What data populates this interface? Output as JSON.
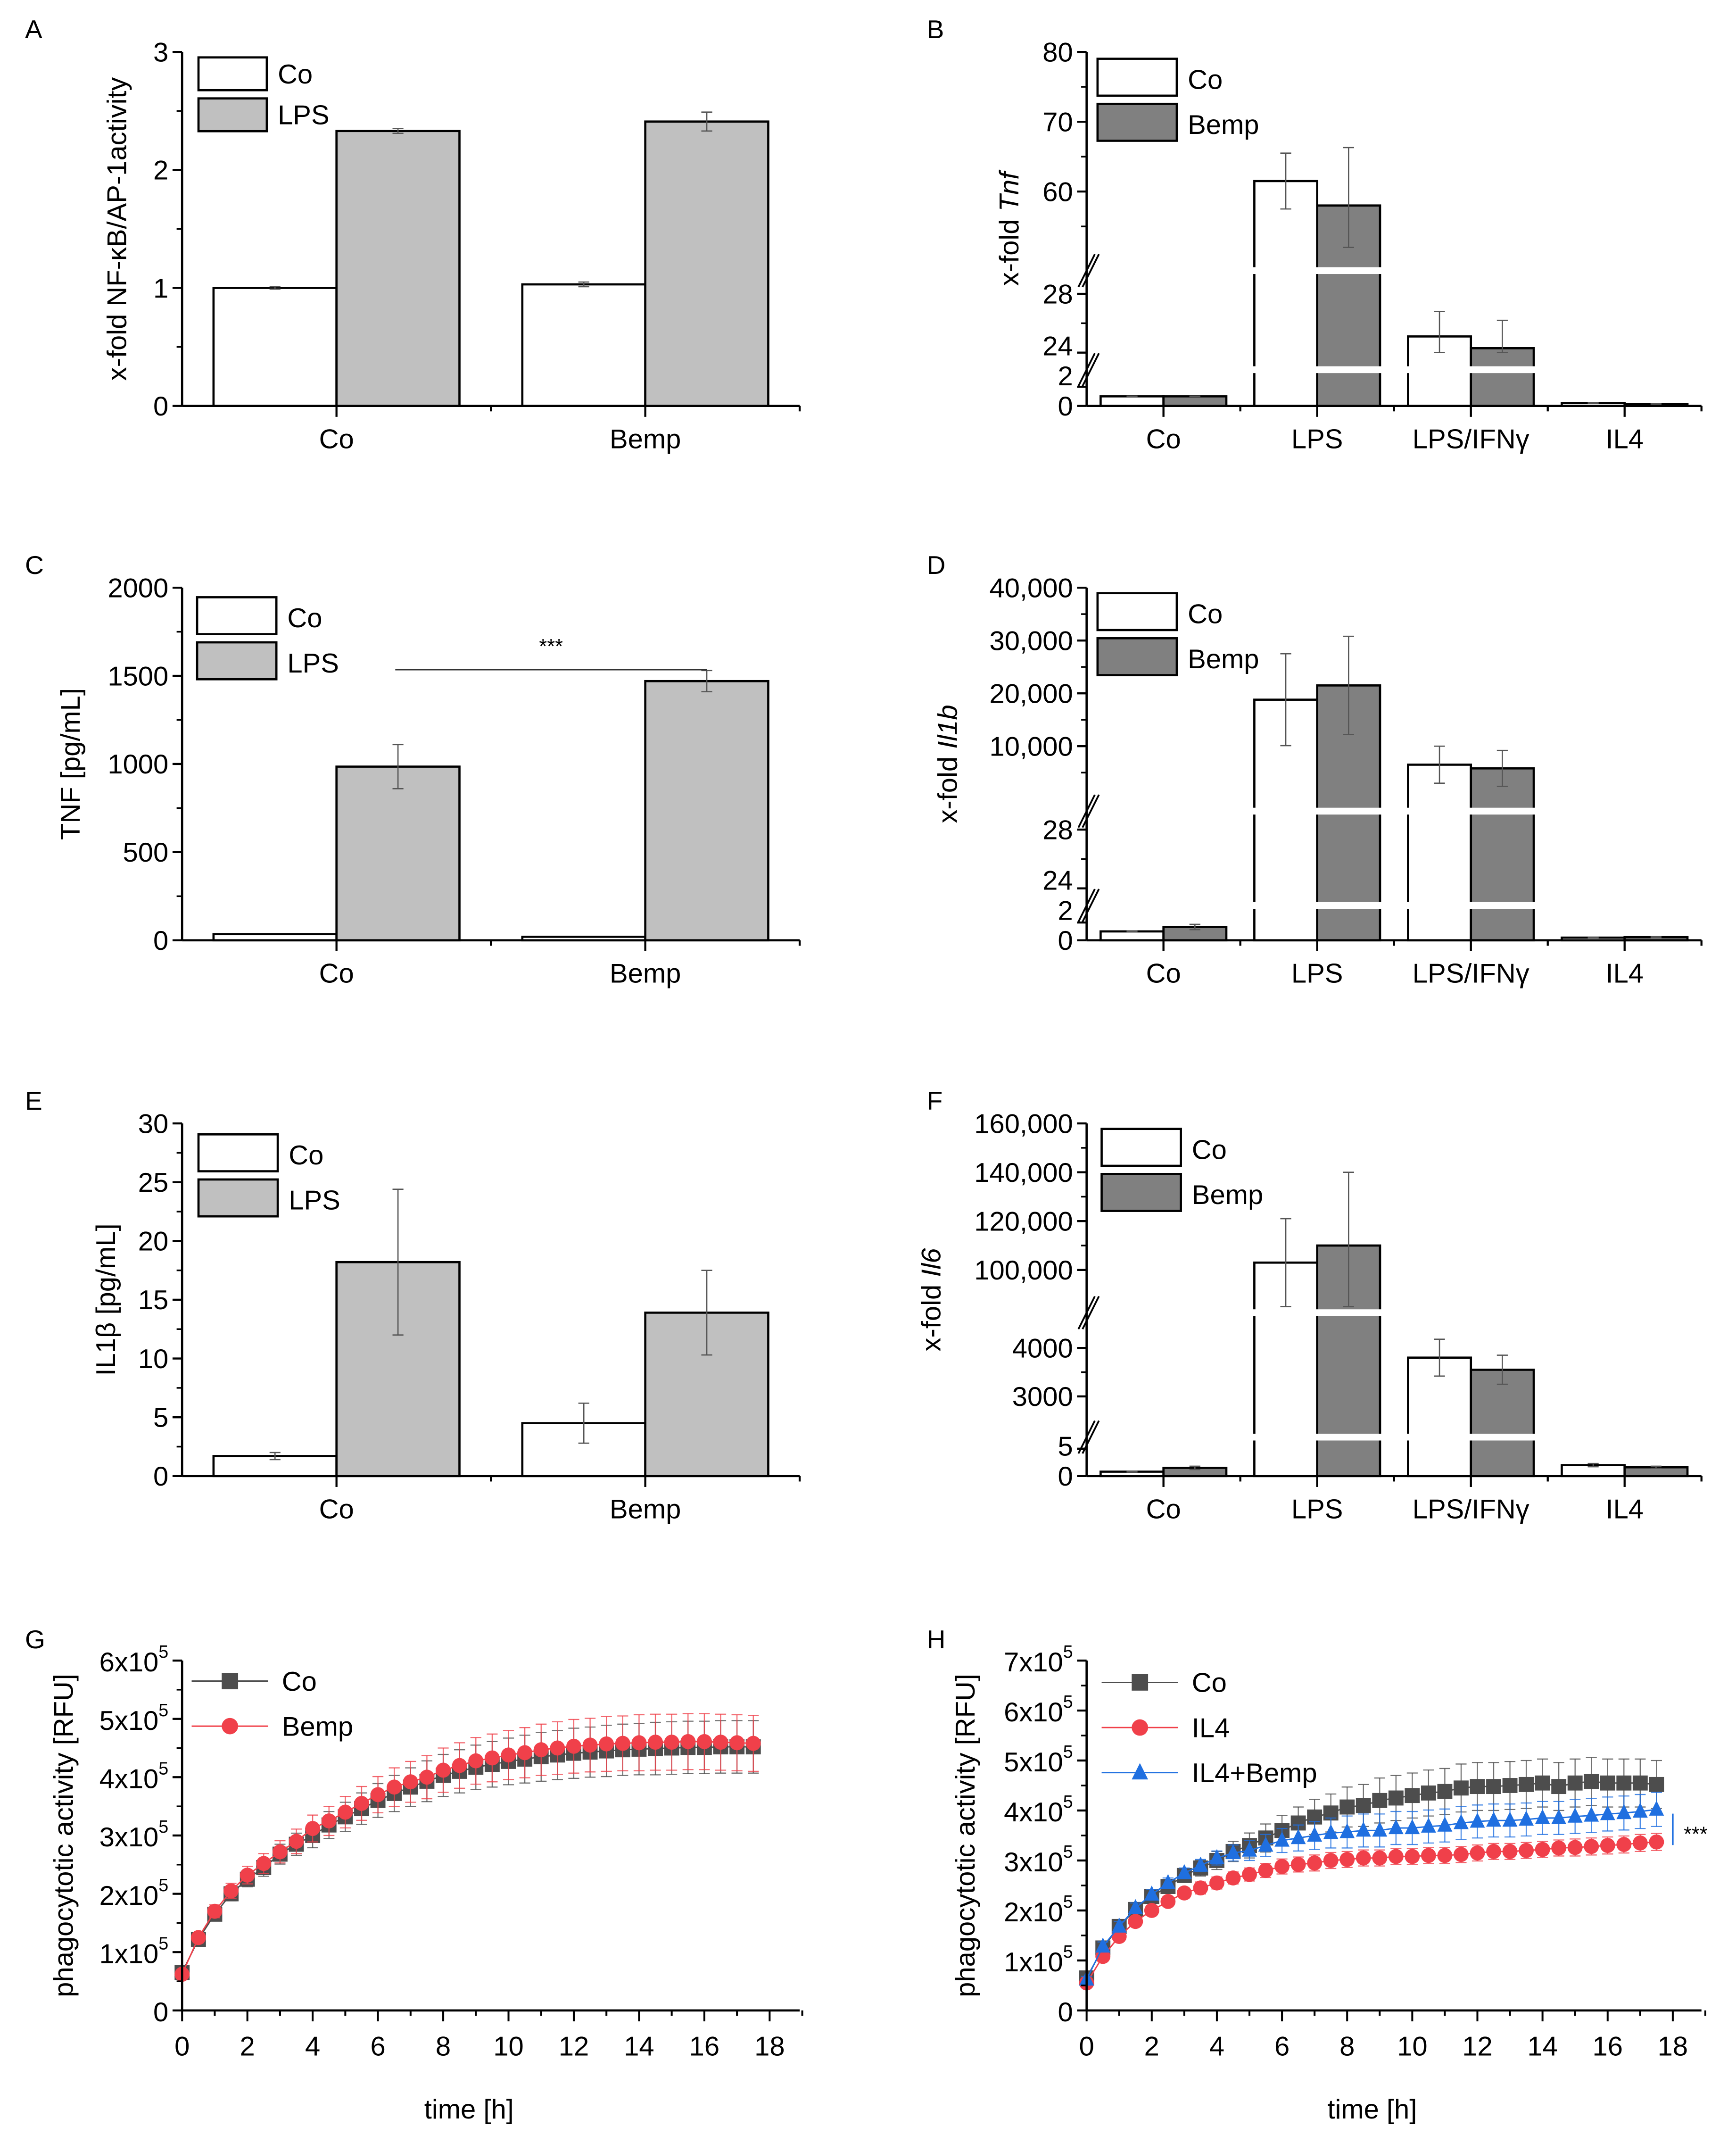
{
  "chart_data": [
    {
      "panel": "A",
      "type": "bar",
      "categories": [
        "Co",
        "Bemp"
      ],
      "series": [
        {
          "name": "Co",
          "values": [
            1.0,
            1.03
          ],
          "errors": [
            0.01,
            0.02
          ],
          "color": "#ffffff"
        },
        {
          "name": "LPS",
          "values": [
            2.33,
            2.41
          ],
          "errors": [
            0.02,
            0.08
          ],
          "color": "#c0c0c0"
        }
      ],
      "ylabel": "x-fold NF-κB/AP-1activity",
      "ylabel_italic": "",
      "ylim": [
        0,
        3
      ],
      "segments": [
        [
          0,
          3
        ]
      ],
      "yticks": [
        0,
        1,
        2,
        3
      ],
      "ytick_labels": [
        "0",
        "1",
        "2",
        "3"
      ],
      "yminor": [
        0.5,
        1.5,
        2.5
      ]
    },
    {
      "panel": "B",
      "type": "bar",
      "categories": [
        "Co",
        "LPS",
        "LPS/IFNγ",
        "IL4"
      ],
      "series": [
        {
          "name": "Co",
          "values": [
            1.0,
            61.5,
            25.1,
            0.3
          ],
          "errors": [
            0.02,
            4.0,
            1.7,
            0.02
          ],
          "color": "#ffffff"
        },
        {
          "name": "Bemp",
          "values": [
            1.0,
            58.0,
            24.3,
            0.2
          ],
          "errors": [
            0.02,
            8.3,
            1.9,
            0.02
          ],
          "color": "#808080"
        }
      ],
      "ylabel": "x-fold ",
      "ylabel_italic": "Tnf",
      "ylim": [
        0,
        80
      ],
      "segments": [
        [
          0,
          2
        ],
        [
          24,
          28
        ],
        [
          52,
          80
        ]
      ],
      "yticks": [
        0,
        2,
        24,
        28,
        60,
        70,
        80
      ],
      "ytick_labels": [
        "0",
        "2",
        "24",
        "28",
        "60",
        "70",
        "80"
      ],
      "yminor": [
        26,
        55,
        65,
        75
      ]
    },
    {
      "panel": "C",
      "type": "bar",
      "categories": [
        "Co",
        "Bemp"
      ],
      "series": [
        {
          "name": "Co",
          "values": [
            35,
            20
          ],
          "errors": [
            0,
            0
          ],
          "color": "#ffffff"
        },
        {
          "name": "LPS",
          "values": [
            985,
            1470
          ],
          "errors": [
            125,
            60
          ],
          "color": "#c0c0c0"
        }
      ],
      "ylabel": "TNF [pg/mL]",
      "ylabel_italic": "",
      "ylim": [
        0,
        2000
      ],
      "segments": [
        [
          0,
          2000
        ]
      ],
      "yticks": [
        0,
        500,
        1000,
        1500,
        2000
      ],
      "ytick_labels": [
        "0",
        "500",
        "1000",
        "1500",
        "2000"
      ],
      "yminor": [
        250,
        750,
        1250,
        1750
      ],
      "annotation": {
        "text": "***",
        "from": "Co",
        "to": "Bemp"
      }
    },
    {
      "panel": "D",
      "type": "bar",
      "categories": [
        "Co",
        "LPS",
        "LPS/IFNγ",
        "IL4"
      ],
      "series": [
        {
          "name": "Co",
          "values": [
            1.0,
            18800,
            6500,
            0.3
          ],
          "errors": [
            0.05,
            8700,
            3500,
            0.03
          ],
          "color": "#ffffff"
        },
        {
          "name": "Bemp",
          "values": [
            1.5,
            21500,
            5800,
            0.35
          ],
          "errors": [
            0.3,
            9300,
            3400,
            0.05
          ],
          "color": "#808080"
        }
      ],
      "ylabel": "x-fold ",
      "ylabel_italic": "Il1b",
      "ylim": [
        0,
        40000
      ],
      "segments": [
        [
          0,
          2
        ],
        [
          24,
          28
        ],
        [
          1200,
          40000
        ]
      ],
      "yticks": [
        0,
        2,
        24,
        28,
        10000,
        20000,
        30000,
        40000
      ],
      "ytick_labels": [
        "0",
        "2",
        "24",
        "28",
        "10,000",
        "20,000",
        "30,000",
        "40,000"
      ],
      "yminor": [
        26,
        5000,
        15000,
        25000,
        35000
      ]
    },
    {
      "panel": "E",
      "type": "bar",
      "categories": [
        "Co",
        "Bemp"
      ],
      "series": [
        {
          "name": "Co",
          "values": [
            1.7,
            4.5
          ],
          "errors": [
            0.3,
            1.7
          ],
          "color": "#ffffff"
        },
        {
          "name": "LPS",
          "values": [
            18.2,
            13.9
          ],
          "errors": [
            6.2,
            3.6
          ],
          "color": "#c0c0c0"
        }
      ],
      "ylabel": "IL1β [pg/mL]",
      "ylabel_italic": "",
      "ylim": [
        0,
        30
      ],
      "segments": [
        [
          0,
          30
        ]
      ],
      "yticks": [
        0,
        5,
        10,
        15,
        20,
        25,
        30
      ],
      "ytick_labels": [
        "0",
        "5",
        "10",
        "15",
        "20",
        "25",
        "30"
      ],
      "yminor": [
        2.5,
        7.5,
        12.5,
        17.5,
        22.5,
        27.5
      ]
    },
    {
      "panel": "F",
      "type": "bar",
      "categories": [
        "Co",
        "LPS",
        "LPS/IFNγ",
        "IL4"
      ],
      "series": [
        {
          "name": "Co",
          "values": [
            0.8,
            103000,
            3800,
            2.0
          ],
          "errors": [
            0.05,
            18000,
            380,
            0.3
          ],
          "color": "#ffffff"
        },
        {
          "name": "Bemp",
          "values": [
            1.5,
            110000,
            3550,
            1.6
          ],
          "errors": [
            0.3,
            30000,
            300,
            0.2
          ],
          "color": "#808080"
        }
      ],
      "ylabel": "x-fold ",
      "ylabel_italic": "Il6",
      "ylim": [
        0,
        160000
      ],
      "segments": [
        [
          0,
          5
        ],
        [
          2400,
          4600
        ],
        [
          85000,
          160000
        ]
      ],
      "yticks": [
        0,
        5,
        3000,
        4000,
        100000,
        120000,
        140000,
        160000
      ],
      "ytick_labels": [
        "0",
        "5",
        "3000",
        "4000",
        "100,000",
        "120,000",
        "140,000",
        "160,000"
      ],
      "yminor": [
        3500,
        110000,
        130000,
        150000
      ]
    },
    {
      "panel": "G",
      "type": "line",
      "x": [
        0,
        0.5,
        1,
        1.5,
        2,
        2.5,
        3,
        3.5,
        4,
        4.5,
        5,
        5.5,
        6,
        6.5,
        7,
        7.5,
        8,
        8.5,
        9,
        9.5,
        10,
        10.5,
        11,
        11.5,
        12,
        12.5,
        13,
        13.5,
        14,
        14.5,
        15,
        15.5,
        16,
        16.5,
        17,
        17.5
      ],
      "series": [
        {
          "name": "Co",
          "marker": "square",
          "color": "#4d4d4d",
          "values": [
            65000,
            122000,
            165000,
            200000,
            225000,
            245000,
            268000,
            285000,
            300000,
            318000,
            332000,
            346000,
            360000,
            372000,
            383000,
            393000,
            403000,
            410000,
            417000,
            422000,
            427000,
            431000,
            435000,
            438000,
            441000,
            443000,
            445000,
            447000,
            448000,
            449000,
            450000,
            451000,
            451000,
            452000,
            452000,
            452000
          ],
          "errors": [
            5000,
            8000,
            10000,
            12000,
            13000,
            15000,
            17000,
            19000,
            21000,
            23000,
            25000,
            27000,
            29000,
            31000,
            33000,
            35000,
            36000,
            37000,
            38000,
            39000,
            40000,
            41000,
            42000,
            42000,
            43000,
            43000,
            44000,
            44000,
            44000,
            45000,
            45000,
            45000,
            45000,
            45000,
            45000,
            45000
          ]
        },
        {
          "name": "Bemp",
          "marker": "circle",
          "color": "#f0404a",
          "values": [
            62000,
            125000,
            170000,
            205000,
            232000,
            252000,
            272000,
            290000,
            312000,
            325000,
            340000,
            355000,
            370000,
            383000,
            392000,
            400000,
            412000,
            420000,
            428000,
            433000,
            438000,
            442000,
            447000,
            450000,
            453000,
            455000,
            457000,
            458000,
            459000,
            460000,
            460000,
            461000,
            461000,
            460000,
            459000,
            458000
          ],
          "errors": [
            6000,
            9000,
            11000,
            13000,
            15000,
            17000,
            19000,
            21000,
            23000,
            25000,
            27000,
            29000,
            31000,
            33000,
            35000,
            37000,
            38000,
            39000,
            40000,
            41000,
            42000,
            43000,
            44000,
            45000,
            46000,
            46000,
            47000,
            47000,
            48000,
            48000,
            48000,
            48000,
            48000,
            48000,
            48000,
            48000
          ]
        }
      ],
      "xlabel": "time [h]",
      "ylabel": "phagocytotic activity [RFU]",
      "xlim": [
        0,
        18
      ],
      "ylim": [
        0,
        600000
      ],
      "xticks": [
        0,
        2,
        4,
        6,
        8,
        10,
        12,
        14,
        16,
        18
      ],
      "yticks": [
        0,
        100000,
        200000,
        300000,
        400000,
        500000,
        600000
      ],
      "ytick_labels": [
        {
          "base": "0",
          "exp": ""
        },
        {
          "base": "1x10",
          "exp": "5"
        },
        {
          "base": "2x10",
          "exp": "5"
        },
        {
          "base": "3x10",
          "exp": "5"
        },
        {
          "base": "4x10",
          "exp": "5"
        },
        {
          "base": "5x10",
          "exp": "5"
        },
        {
          "base": "6x10",
          "exp": "5"
        }
      ]
    },
    {
      "panel": "H",
      "type": "line",
      "x": [
        0,
        0.5,
        1,
        1.5,
        2,
        2.5,
        3,
        3.5,
        4,
        4.5,
        5,
        5.5,
        6,
        6.5,
        7,
        7.5,
        8,
        8.5,
        9,
        9.5,
        10,
        10.5,
        11,
        11.5,
        12,
        12.5,
        13,
        13.5,
        14,
        14.5,
        15,
        15.5,
        16,
        16.5,
        17,
        17.5
      ],
      "series": [
        {
          "name": "Co",
          "marker": "square",
          "color": "#4d4d4d",
          "values": [
            65000,
            125000,
            168000,
            202000,
            228000,
            248000,
            270000,
            285000,
            300000,
            318000,
            330000,
            345000,
            360000,
            375000,
            387000,
            395000,
            407000,
            410000,
            420000,
            425000,
            430000,
            435000,
            438000,
            445000,
            448000,
            448000,
            450000,
            452000,
            455000,
            448000,
            455000,
            458000,
            455000,
            455000,
            455000,
            452000
          ],
          "errors": [
            5000,
            9000,
            11000,
            12000,
            12000,
            12000,
            14000,
            16000,
            18000,
            20000,
            25000,
            28000,
            30000,
            32000,
            35000,
            38000,
            40000,
            42000,
            45000,
            45000,
            45000,
            46000,
            46000,
            48000,
            48000,
            48000,
            48000,
            48000,
            48000,
            48000,
            48000,
            48000,
            48000,
            48000,
            48000,
            48000
          ]
        },
        {
          "name": "IL4",
          "marker": "circle",
          "color": "#f0404a",
          "values": [
            55000,
            108000,
            148000,
            178000,
            200000,
            218000,
            235000,
            245000,
            255000,
            265000,
            272000,
            280000,
            288000,
            292000,
            295000,
            300000,
            302000,
            305000,
            305000,
            308000,
            308000,
            310000,
            310000,
            312000,
            315000,
            318000,
            318000,
            320000,
            322000,
            325000,
            326000,
            328000,
            330000,
            332000,
            335000,
            337000
          ],
          "errors": [
            6000,
            9000,
            10000,
            10000,
            10000,
            10000,
            10000,
            12000,
            12000,
            12000,
            13000,
            14000,
            15000,
            15000,
            16000,
            16000,
            16000,
            16000,
            16000,
            16000,
            16000,
            16000,
            16000,
            16000,
            16000,
            16000,
            16000,
            16000,
            16000,
            16000,
            17000,
            17000,
            17000,
            17000,
            17000,
            17000
          ]
        },
        {
          "name": "IL4+Bemp",
          "marker": "triangle",
          "color": "#1f6fe0",
          "values": [
            62000,
            128000,
            168000,
            205000,
            232000,
            255000,
            275000,
            290000,
            305000,
            315000,
            320000,
            330000,
            340000,
            345000,
            350000,
            355000,
            357000,
            360000,
            360000,
            365000,
            365000,
            368000,
            370000,
            375000,
            378000,
            380000,
            380000,
            382000,
            385000,
            385000,
            388000,
            390000,
            393000,
            395000,
            398000,
            402000
          ],
          "errors": [
            6000,
            9000,
            10000,
            10000,
            10000,
            10000,
            10000,
            12000,
            14000,
            16000,
            20000,
            22000,
            24000,
            26000,
            28000,
            30000,
            32000,
            33000,
            33000,
            33000,
            33000,
            33000,
            33000,
            33000,
            33000,
            33000,
            33000,
            33000,
            33000,
            33000,
            34000,
            34000,
            34000,
            34000,
            34000,
            34000
          ]
        }
      ],
      "xlabel": "time [h]",
      "ylabel": "phagocytotic activity [RFU]",
      "xlim": [
        0,
        18
      ],
      "ylim": [
        0,
        700000
      ],
      "xticks": [
        0,
        2,
        4,
        6,
        8,
        10,
        12,
        14,
        16,
        18
      ],
      "yticks": [
        0,
        100000,
        200000,
        300000,
        400000,
        500000,
        600000,
        700000
      ],
      "ytick_labels": [
        {
          "base": "0",
          "exp": ""
        },
        {
          "base": "1x10",
          "exp": "5"
        },
        {
          "base": "2x10",
          "exp": "5"
        },
        {
          "base": "3x10",
          "exp": "5"
        },
        {
          "base": "4x10",
          "exp": "5"
        },
        {
          "base": "5x10",
          "exp": "5"
        },
        {
          "base": "6x10",
          "exp": "5"
        },
        {
          "base": "7x10",
          "exp": "5"
        }
      ],
      "annotation": {
        "text": "***",
        "between": [
          "Co",
          "IL4"
        ]
      }
    }
  ]
}
